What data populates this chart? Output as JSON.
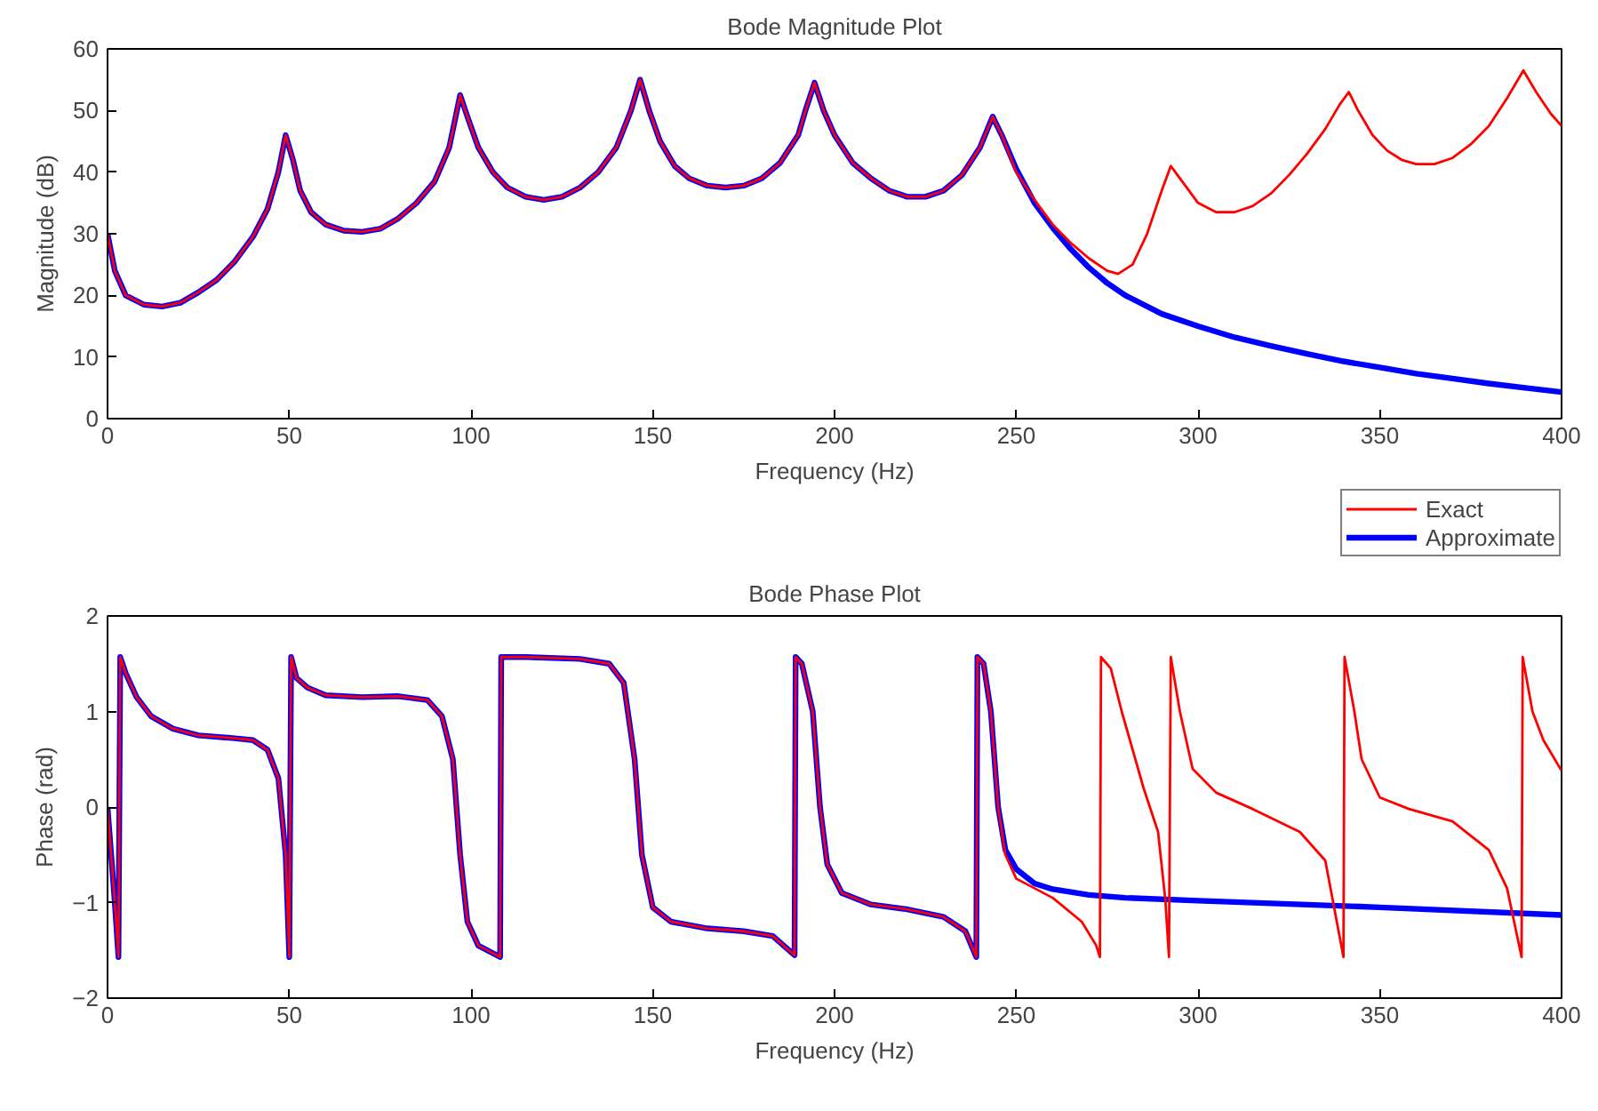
{
  "chart_data": [
    {
      "type": "line",
      "title": "Bode Magnitude Plot",
      "xlabel": "Frequency (Hz)",
      "ylabel": "Magnitude (dB)",
      "xlim": [
        0,
        400
      ],
      "xticks": [
        0,
        50,
        100,
        150,
        200,
        250,
        300,
        350,
        400
      ],
      "ylim": [
        0,
        60
      ],
      "yticks": [
        0,
        10,
        20,
        30,
        40,
        50,
        60
      ],
      "grid": false,
      "legend": false,
      "marker": "none",
      "line_style": "solid",
      "series": [
        {
          "color": "#ff0000",
          "x": [
            0,
            2,
            5,
            10,
            15,
            20,
            25,
            30,
            35,
            40,
            44,
            47,
            49,
            51,
            53,
            56,
            60,
            65,
            70,
            75,
            80,
            85,
            90,
            94,
            97,
            99,
            102,
            106,
            110,
            115,
            120,
            125,
            130,
            135,
            140,
            144,
            146.5,
            149,
            152,
            156,
            160,
            165,
            170,
            175,
            180,
            185,
            190,
            192,
            194.5,
            197,
            200,
            205,
            210,
            215,
            220,
            225,
            230,
            235,
            240,
            243.5,
            246,
            250,
            255,
            260,
            265,
            270,
            275,
            278,
            282,
            286,
            290,
            292.5,
            295,
            300,
            305,
            310,
            315,
            320,
            325,
            330,
            335,
            339,
            341.5,
            344,
            348,
            352,
            356,
            360,
            365,
            370,
            375,
            380,
            385,
            389.5,
            393,
            397,
            400
          ],
          "values": [
            30,
            24,
            20,
            18.5,
            18.2,
            18.8,
            20.5,
            22.5,
            25.5,
            29.5,
            34,
            40,
            46,
            42,
            37,
            33.5,
            31.5,
            30.5,
            30.3,
            30.8,
            32.5,
            35,
            38.5,
            44,
            52.5,
            49,
            44,
            40,
            37.5,
            36,
            35.5,
            36,
            37.5,
            40,
            44,
            50,
            55,
            50,
            45,
            41,
            39,
            37.8,
            37.5,
            37.8,
            39,
            41.5,
            46,
            50,
            54.5,
            50,
            46,
            41.5,
            39,
            37,
            36,
            36,
            37,
            39.5,
            44,
            49,
            46,
            40,
            35.5,
            31.5,
            28.5,
            26,
            24,
            23.5,
            25,
            30,
            37,
            41,
            39,
            35,
            33.5,
            33.5,
            34.5,
            36.5,
            39.5,
            43,
            47,
            51,
            53,
            50,
            46,
            43.5,
            42,
            41.3,
            41.3,
            42.3,
            44.5,
            47.5,
            52,
            56.5,
            53,
            49.5,
            47.5
          ]
        },
        {
          "color": "#0000ff",
          "x": [
            0,
            2,
            5,
            10,
            15,
            20,
            25,
            30,
            35,
            40,
            44,
            47,
            49,
            51,
            53,
            56,
            60,
            65,
            70,
            75,
            80,
            85,
            90,
            94,
            97,
            99,
            102,
            106,
            110,
            115,
            120,
            125,
            130,
            135,
            140,
            144,
            146.5,
            149,
            152,
            156,
            160,
            165,
            170,
            175,
            180,
            185,
            190,
            192,
            194.5,
            197,
            200,
            205,
            210,
            215,
            220,
            225,
            230,
            235,
            240,
            243.5,
            246,
            250,
            255,
            260,
            265,
            270,
            275,
            280,
            290,
            300,
            310,
            320,
            330,
            340,
            350,
            360,
            370,
            380,
            390,
            400
          ],
          "values": [
            30,
            24,
            20,
            18.5,
            18.2,
            18.8,
            20.5,
            22.5,
            25.5,
            29.5,
            34,
            40,
            46,
            42,
            37,
            33.5,
            31.5,
            30.5,
            30.3,
            30.8,
            32.5,
            35,
            38.5,
            44,
            52.5,
            49,
            44,
            40,
            37.5,
            36,
            35.5,
            36,
            37.5,
            40,
            44,
            50,
            55,
            50,
            45,
            41,
            39,
            37.8,
            37.5,
            37.8,
            39,
            41.5,
            46,
            50,
            54.5,
            50,
            46,
            41.5,
            39,
            37,
            36,
            36,
            37,
            39.5,
            44,
            49,
            46,
            40.5,
            35,
            31,
            27.5,
            24.5,
            22,
            20,
            17,
            15,
            13.2,
            11.8,
            10.5,
            9.3,
            8.3,
            7.3,
            6.5,
            5.7,
            5,
            4.3
          ]
        }
      ]
    },
    {
      "type": "line",
      "title": "Bode Phase Plot",
      "xlabel": "Frequency (Hz)",
      "ylabel": "Phase (rad)",
      "xlim": [
        0,
        400
      ],
      "xticks": [
        0,
        50,
        100,
        150,
        200,
        250,
        300,
        350,
        400
      ],
      "ylim": [
        -2,
        2
      ],
      "yticks": [
        -2,
        -1,
        0,
        1,
        2
      ],
      "grid": false,
      "legend": "top right",
      "marker": "none",
      "line_style": "solid",
      "series": [
        {
          "name": "Exact",
          "color": "#ff0000",
          "x": [
            0,
            1,
            2,
            3,
            3.5,
            5,
            8,
            12,
            18,
            25,
            35,
            40,
            44,
            47,
            49,
            50,
            50.5,
            52,
            55,
            60,
            70,
            80,
            88,
            92,
            95,
            97,
            99,
            102,
            108,
            108.3,
            115,
            130,
            138,
            142,
            145,
            147,
            150,
            155,
            165,
            175,
            183,
            189,
            189.3,
            191,
            194,
            196,
            198,
            202,
            210,
            220,
            230,
            236,
            239,
            239.3,
            241,
            243,
            245,
            247,
            250,
            260,
            268,
            272,
            273,
            273.3,
            276,
            279,
            285,
            289,
            291,
            292,
            292.5,
            295,
            298.5,
            305,
            315,
            328,
            335,
            340,
            340.3,
            343,
            345,
            350,
            358,
            370,
            380,
            385,
            389,
            389.3,
            392,
            395,
            400
          ],
          "values": [
            0,
            -0.5,
            -1.0,
            -1.57,
            1.57,
            1.4,
            1.15,
            0.95,
            0.82,
            0.75,
            0.72,
            0.7,
            0.6,
            0.3,
            -0.5,
            -1.57,
            1.57,
            1.35,
            1.25,
            1.17,
            1.15,
            1.16,
            1.12,
            0.95,
            0.5,
            -0.5,
            -1.2,
            -1.45,
            -1.57,
            1.57,
            1.57,
            1.55,
            1.5,
            1.3,
            0.5,
            -0.5,
            -1.05,
            -1.2,
            -1.27,
            -1.3,
            -1.35,
            -1.55,
            1.57,
            1.5,
            1.0,
            0.0,
            -0.6,
            -0.9,
            -1.02,
            -1.07,
            -1.15,
            -1.3,
            -1.57,
            1.57,
            1.5,
            1.0,
            0.0,
            -0.5,
            -0.75,
            -0.95,
            -1.2,
            -1.45,
            -1.57,
            1.57,
            1.45,
            1.0,
            0.2,
            -0.26,
            -0.97,
            -1.57,
            1.57,
            1.0,
            0.4,
            0.15,
            -0.02,
            -0.26,
            -0.56,
            -1.57,
            1.57,
            1.0,
            0.5,
            0.1,
            -0.02,
            -0.15,
            -0.45,
            -0.85,
            -1.57,
            1.57,
            1.0,
            0.7,
            0.38
          ]
        },
        {
          "name": "Approximate",
          "color": "#0000ff",
          "x": [
            0,
            1,
            2,
            3,
            3.5,
            5,
            8,
            12,
            18,
            25,
            35,
            40,
            44,
            47,
            49,
            50,
            50.5,
            52,
            55,
            60,
            70,
            80,
            88,
            92,
            95,
            97,
            99,
            102,
            108,
            108.3,
            115,
            130,
            138,
            142,
            145,
            147,
            150,
            155,
            165,
            175,
            183,
            189,
            189.3,
            191,
            194,
            196,
            198,
            202,
            210,
            220,
            230,
            236,
            239,
            239.3,
            241,
            243,
            245,
            247,
            250,
            255,
            260,
            270,
            280,
            300,
            350,
            400
          ],
          "values": [
            0,
            -0.5,
            -1.0,
            -1.57,
            1.57,
            1.4,
            1.15,
            0.95,
            0.82,
            0.75,
            0.72,
            0.7,
            0.6,
            0.3,
            -0.5,
            -1.57,
            1.57,
            1.35,
            1.25,
            1.17,
            1.15,
            1.16,
            1.12,
            0.95,
            0.5,
            -0.5,
            -1.2,
            -1.45,
            -1.57,
            1.57,
            1.57,
            1.55,
            1.5,
            1.3,
            0.5,
            -0.5,
            -1.05,
            -1.2,
            -1.27,
            -1.3,
            -1.35,
            -1.55,
            1.57,
            1.5,
            1.0,
            0.0,
            -0.6,
            -0.9,
            -1.02,
            -1.07,
            -1.15,
            -1.3,
            -1.57,
            1.57,
            1.5,
            1.0,
            0.0,
            -0.45,
            -0.65,
            -0.8,
            -0.86,
            -0.92,
            -0.95,
            -0.98,
            -1.05,
            -1.13
          ]
        }
      ]
    }
  ]
}
